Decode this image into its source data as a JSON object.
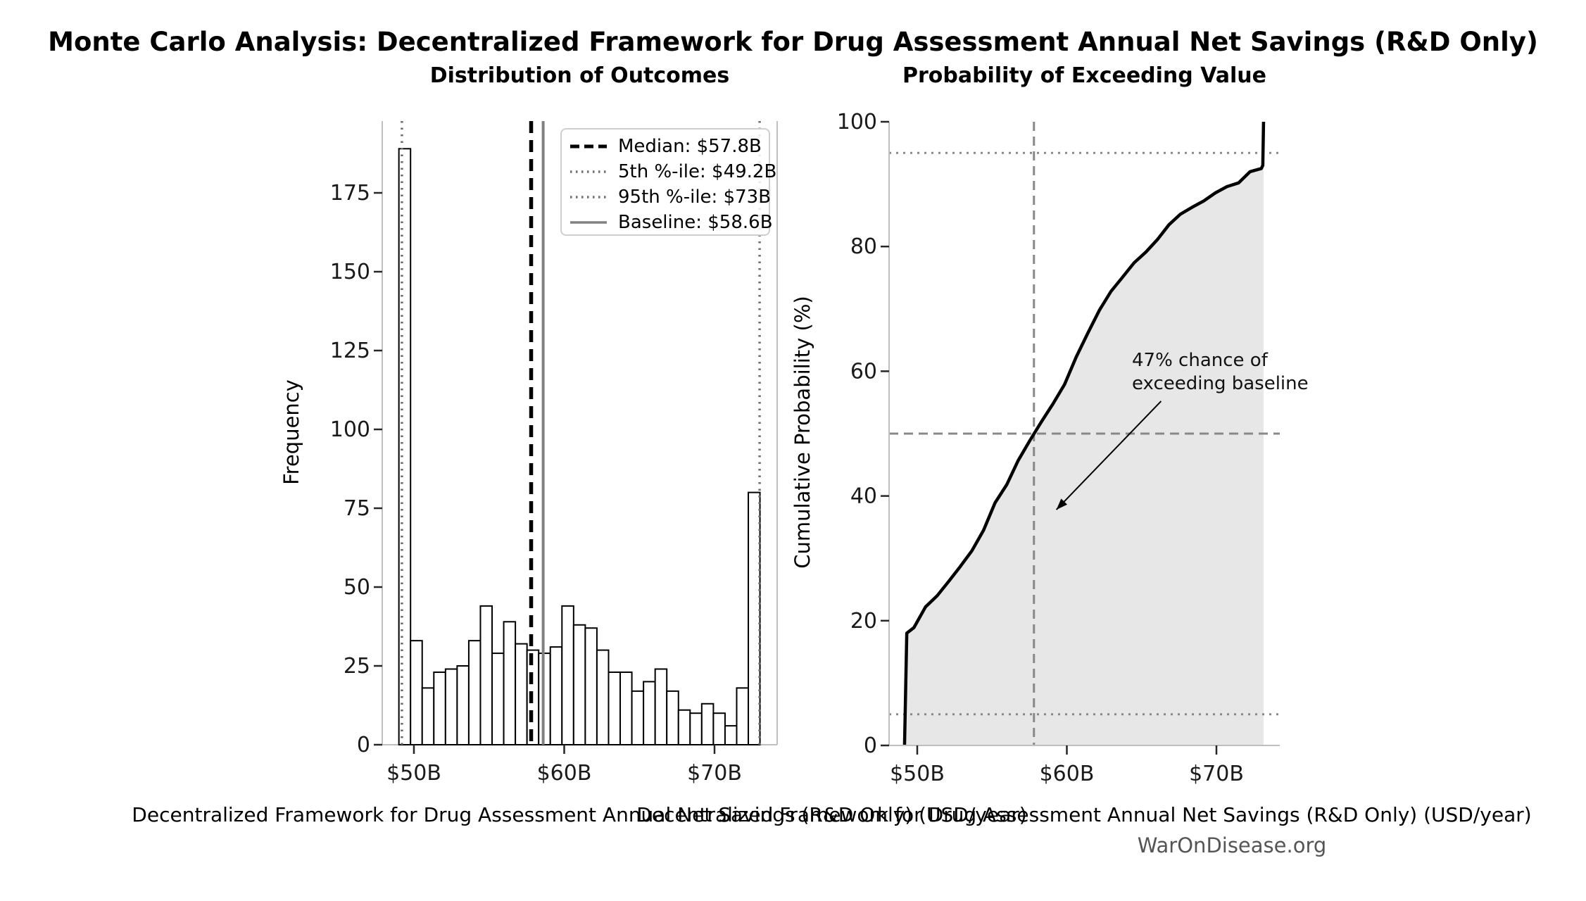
{
  "figure": {
    "title": "Monte Carlo Analysis: Decentralized Framework for Drug Assessment Annual Net Savings (R&D Only)",
    "watermark": "WarOnDisease.org",
    "background": "#ffffff"
  },
  "chart_data": [
    {
      "type": "bar",
      "name": "outcome-histogram",
      "title": "Distribution of Outcomes",
      "xlabel": "Decentralized Framework for Drug Assessment Annual Net Savings (R&D Only) (USD/year)",
      "ylabel": "Frequency",
      "bin_start_usd_b": 49.0,
      "bin_width_usd_b": 0.775,
      "values": [
        189,
        33,
        18,
        23,
        24,
        25,
        33,
        44,
        29,
        39,
        32,
        30,
        29,
        31,
        44,
        38,
        37,
        30,
        23,
        23,
        17,
        20,
        24,
        17,
        11,
        10,
        13,
        10,
        6,
        18,
        80
      ],
      "total_samples": 1000,
      "bar_fill": "#ffffff",
      "bar_edge": "#000000",
      "x_ticks": [
        {
          "value": 50,
          "label": "$50B"
        },
        {
          "value": 60,
          "label": "$60B"
        },
        {
          "value": 70,
          "label": "$70B"
        }
      ],
      "y_ticks": [
        0,
        25,
        50,
        75,
        100,
        125,
        150,
        175
      ],
      "xlim": [
        47.9,
        74.2
      ],
      "ylim": [
        0,
        198
      ],
      "grid": false,
      "ref_lines": [
        {
          "id": "median",
          "value": 57.8,
          "style": "dashed",
          "color": "#000000",
          "label": "Median: $57.8B"
        },
        {
          "id": "p5",
          "value": 49.2,
          "style": "dotted",
          "color": "#6e6e6e",
          "label": "5th %-ile: $49.2B"
        },
        {
          "id": "p95",
          "value": 73.0,
          "style": "dotted",
          "color": "#6e6e6e",
          "label": "95th %-ile: $73B"
        },
        {
          "id": "baseline",
          "value": 58.6,
          "style": "solid",
          "color": "#808080",
          "label": "Baseline: $58.6B"
        }
      ],
      "legend_position": "upper right"
    },
    {
      "type": "line",
      "name": "cumulative-probability-curve",
      "title": "Probability of Exceeding Value",
      "xlabel": "Decentralized Framework for Drug Assessment Annual Net Savings (R&D Only) (USD/year)",
      "ylabel": "Cumulative Probability (%)",
      "x": [
        49.15,
        49.3,
        49.78,
        50.55,
        51.33,
        52.1,
        52.88,
        53.65,
        54.43,
        55.2,
        55.98,
        56.75,
        57.53,
        58.3,
        59.08,
        59.85,
        60.63,
        61.4,
        62.18,
        62.95,
        63.73,
        64.5,
        65.28,
        66.05,
        66.83,
        67.6,
        68.38,
        69.15,
        69.93,
        70.7,
        71.48,
        72.25,
        73.0,
        73.1,
        73.15
      ],
      "y": [
        0,
        18.0,
        18.9,
        22.2,
        24.0,
        26.3,
        28.7,
        31.2,
        34.5,
        38.9,
        41.8,
        45.7,
        48.9,
        51.9,
        54.8,
        57.9,
        62.3,
        66.1,
        69.8,
        72.8,
        75.1,
        77.4,
        79.1,
        81.1,
        83.5,
        85.2,
        86.3,
        87.3,
        88.6,
        89.6,
        90.2,
        92.0,
        92.5,
        93.0,
        100
      ],
      "line_color": "#000000",
      "fill_color": "#e7e7e7",
      "x_ticks": [
        {
          "value": 50,
          "label": "$50B"
        },
        {
          "value": 60,
          "label": "$60B"
        },
        {
          "value": 70,
          "label": "$70B"
        }
      ],
      "y_ticks": [
        0,
        20,
        40,
        60,
        80,
        100
      ],
      "xlim": [
        48.1,
        74.2
      ],
      "ylim": [
        0,
        100
      ],
      "grid": false,
      "guides": [
        {
          "orient": "h",
          "value": 95,
          "style": "dotted",
          "color": "#888888"
        },
        {
          "orient": "h",
          "value": 5,
          "style": "dotted",
          "color": "#888888"
        },
        {
          "orient": "h",
          "value": 50,
          "style": "dashed",
          "color": "#888888"
        },
        {
          "orient": "v",
          "value": 57.8,
          "style": "dashed",
          "color": "#888888"
        }
      ],
      "annotation": {
        "lines": [
          "47% chance of",
          "exceeding baseline"
        ],
        "arrow_start_data": [
          66.3,
          55.2
        ],
        "arrow_tip_data": [
          59.3,
          37.8
        ]
      }
    }
  ]
}
